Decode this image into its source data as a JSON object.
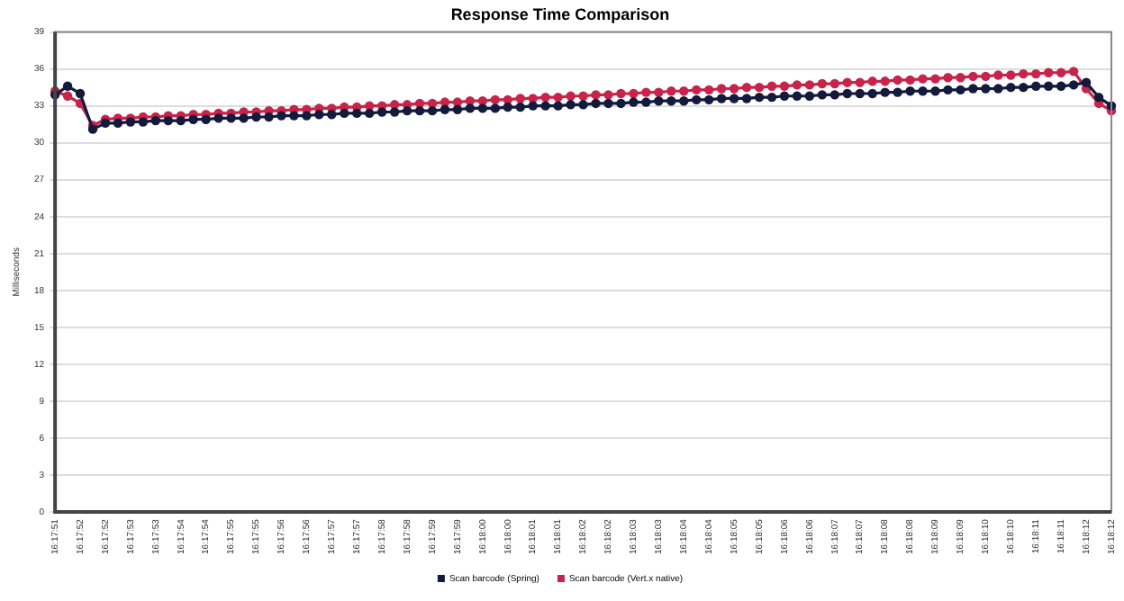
{
  "chart_data": {
    "type": "line",
    "title": "Response Time Comparison",
    "ylabel": "Milliseconds",
    "categories": [
      "16:17:51",
      null,
      "16:17:52",
      null,
      "16:17:52",
      null,
      "16:17:53",
      null,
      "16:17:53",
      null,
      "16:17:54",
      null,
      "16:17:54",
      null,
      "16:17:55",
      null,
      "16:17:55",
      null,
      "16:17:56",
      null,
      "16:17:56",
      null,
      "16:17:57",
      null,
      "16:17:57",
      null,
      "16:17:58",
      null,
      "16:17:58",
      null,
      "16:17:59",
      null,
      "16:17:59",
      null,
      "16:18:00",
      null,
      "16:18:00",
      null,
      "16:18:01",
      null,
      "16:18:01",
      null,
      "16:18:02",
      null,
      "16:18:02",
      null,
      "16:18:03",
      null,
      "16:18:03",
      null,
      "16:18:04",
      null,
      "16:18:04",
      null,
      "16:18:05",
      null,
      "16:18:05",
      null,
      "16:18:06",
      null,
      "16:18:06",
      null,
      "16:18:07",
      null,
      "16:18:07",
      null,
      "16:18:08",
      null,
      "16:18:08",
      null,
      "16:18:09",
      null,
      "16:18:09",
      null,
      "16:18:10",
      null,
      "16:18:10",
      null,
      "16:18:11",
      null,
      "16:18:11",
      null,
      "16:18:12",
      null,
      "16:18:12"
    ],
    "series": [
      {
        "name": "Scan barcode (Spring)",
        "color": "#141a3c",
        "values": [
          33.9,
          34.6,
          34.0,
          31.1,
          31.6,
          31.6,
          31.7,
          31.7,
          31.8,
          31.8,
          31.8,
          31.9,
          31.9,
          32.0,
          32.0,
          32.0,
          32.1,
          32.1,
          32.2,
          32.2,
          32.2,
          32.3,
          32.3,
          32.4,
          32.4,
          32.4,
          32.5,
          32.5,
          32.6,
          32.6,
          32.6,
          32.7,
          32.7,
          32.8,
          32.8,
          32.8,
          32.9,
          32.9,
          33.0,
          33.0,
          33.0,
          33.1,
          33.1,
          33.2,
          33.2,
          33.2,
          33.3,
          33.3,
          33.4,
          33.4,
          33.4,
          33.5,
          33.5,
          33.6,
          33.6,
          33.6,
          33.7,
          33.7,
          33.8,
          33.8,
          33.8,
          33.9,
          33.9,
          34.0,
          34.0,
          34.0,
          34.1,
          34.1,
          34.2,
          34.2,
          34.2,
          34.3,
          34.3,
          34.4,
          34.4,
          34.4,
          34.5,
          34.5,
          34.6,
          34.6,
          34.6,
          34.7,
          34.9,
          33.7,
          33.0
        ]
      },
      {
        "name": "Scan barcode (Vert.x native)",
        "color": "#c8234a",
        "values": [
          34.2,
          33.8,
          33.2,
          31.4,
          31.9,
          32.0,
          32.0,
          32.1,
          32.1,
          32.2,
          32.2,
          32.3,
          32.3,
          32.4,
          32.4,
          32.5,
          32.5,
          32.6,
          32.6,
          32.7,
          32.7,
          32.8,
          32.8,
          32.9,
          32.9,
          33.0,
          33.0,
          33.1,
          33.1,
          33.2,
          33.2,
          33.3,
          33.3,
          33.4,
          33.4,
          33.5,
          33.5,
          33.6,
          33.6,
          33.7,
          33.7,
          33.8,
          33.8,
          33.9,
          33.9,
          34.0,
          34.0,
          34.1,
          34.1,
          34.2,
          34.2,
          34.3,
          34.3,
          34.4,
          34.4,
          34.5,
          34.5,
          34.6,
          34.6,
          34.7,
          34.7,
          34.8,
          34.8,
          34.9,
          34.9,
          35.0,
          35.0,
          35.1,
          35.1,
          35.2,
          35.2,
          35.3,
          35.3,
          35.4,
          35.4,
          35.5,
          35.5,
          35.6,
          35.6,
          35.7,
          35.7,
          35.8,
          34.4,
          33.2,
          32.6
        ]
      }
    ],
    "ylim": [
      0,
      39
    ],
    "yticks": [
      0,
      3,
      6,
      9,
      12,
      15,
      18,
      21,
      24,
      27,
      30,
      33,
      36,
      39
    ],
    "grid": "y",
    "legend": "bottom",
    "marker": "circle",
    "line_style": "solid"
  }
}
